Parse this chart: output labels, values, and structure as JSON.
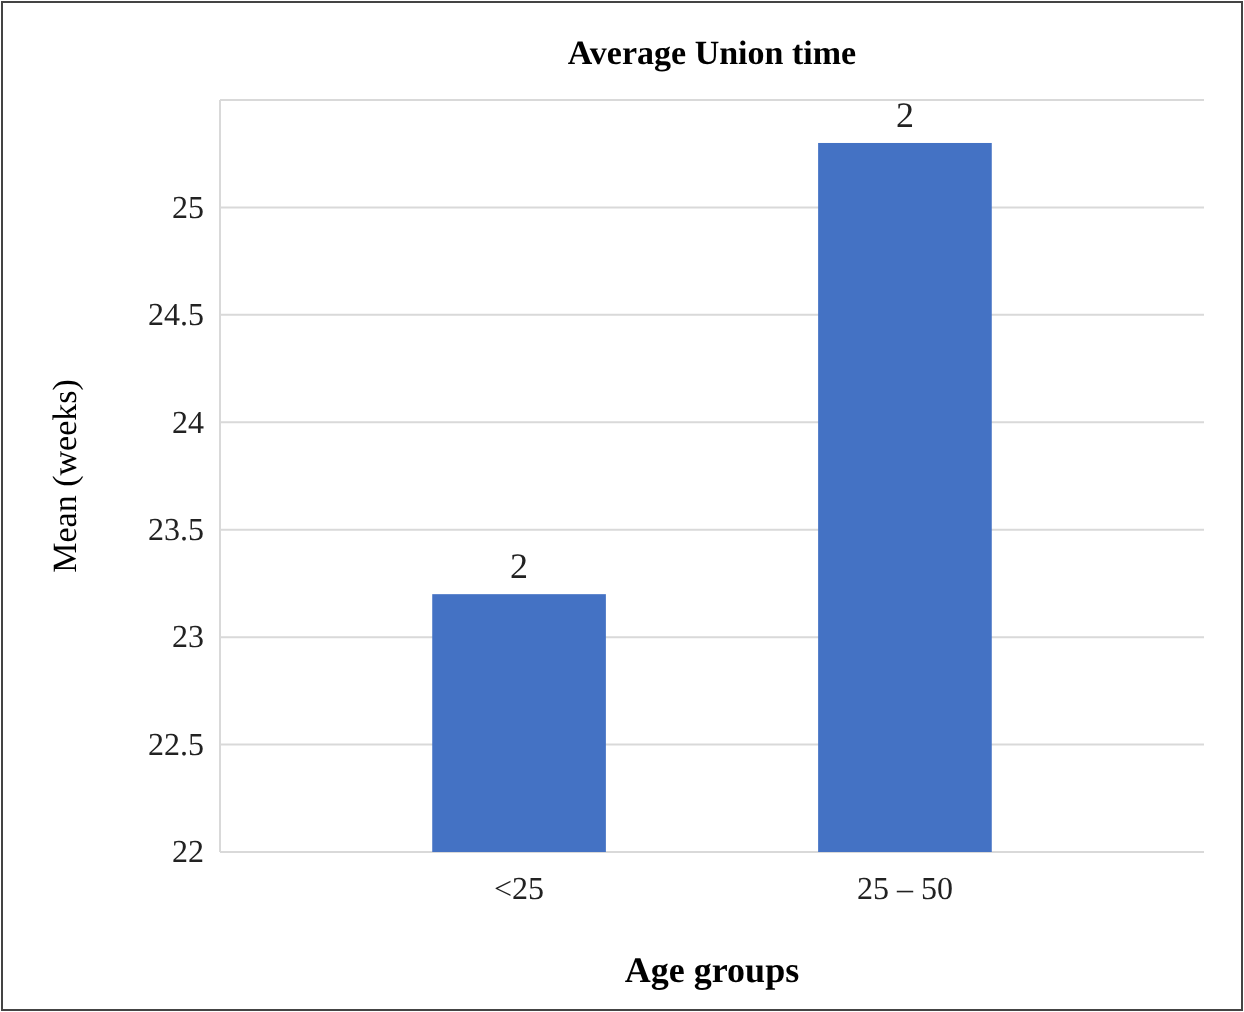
{
  "chart_data": {
    "type": "bar",
    "title": "Average Union time",
    "xlabel": "Age groups",
    "ylabel": "Mean (weeks)",
    "categories": [
      "<25",
      "25 – 50"
    ],
    "values": [
      23.2,
      25.3
    ],
    "color": "#4472c4",
    "annotations": [
      {
        "text": "2",
        "x": "<25",
        "y": 23.2
      },
      {
        "text": "2",
        "x": "25 – 50",
        "y": 25.3
      }
    ],
    "ylim": [
      22,
      25.5
    ],
    "yticks": [
      22,
      22.5,
      23,
      23.5,
      24,
      24.5,
      25,
      {
        "value": 25.5,
        "label": null
      }
    ],
    "grid": "y"
  }
}
